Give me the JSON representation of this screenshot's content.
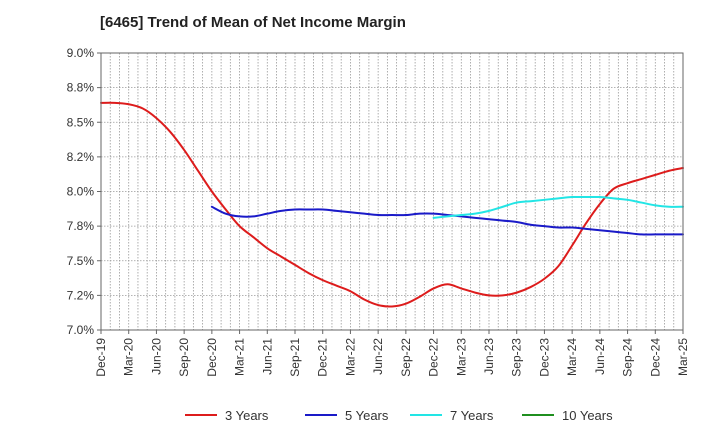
{
  "chart_data": {
    "type": "line",
    "title": "[6465]  Trend of Mean of Net Income Margin",
    "xlabel": "",
    "ylabel": "",
    "ylim": [
      7.0,
      9.0
    ],
    "y_ticks": [
      7.0,
      7.25,
      7.5,
      7.75,
      8.0,
      8.25,
      8.5,
      8.75,
      9.0
    ],
    "y_tick_labels": [
      "7.0%",
      "7.2%",
      "7.5%",
      "7.8%",
      "8.0%",
      "8.2%",
      "8.5%",
      "8.8%",
      "9.0%"
    ],
    "x_tick_labels": [
      "Dec-19",
      "Mar-20",
      "Jun-20",
      "Sep-20",
      "Dec-20",
      "Mar-21",
      "Jun-21",
      "Sep-21",
      "Dec-21",
      "Mar-22",
      "Jun-22",
      "Sep-22",
      "Dec-22",
      "Mar-23",
      "Jun-23",
      "Sep-23",
      "Dec-23",
      "Mar-24",
      "Jun-24",
      "Sep-24",
      "Dec-24",
      "Mar-25"
    ],
    "grid": true,
    "legend_position": "bottom",
    "series": [
      {
        "name": "3 Years",
        "color": "#dd1c1c",
        "values": [
          8.64,
          8.64,
          8.63,
          8.6,
          8.53,
          8.43,
          8.3,
          8.15,
          8.0,
          7.87,
          7.75,
          7.67,
          7.59,
          7.53,
          7.47,
          7.41,
          7.36,
          7.32,
          7.28,
          7.22,
          7.18,
          7.17,
          7.19,
          7.24,
          7.3,
          7.33,
          7.3,
          7.27,
          7.25,
          7.25,
          7.27,
          7.31,
          7.37,
          7.46,
          7.61,
          7.77,
          7.91,
          8.02,
          8.06,
          8.09,
          8.12,
          8.15,
          8.17
        ]
      },
      {
        "name": "5 Years",
        "color": "#1a1ac8",
        "values": [
          null,
          null,
          null,
          null,
          null,
          null,
          null,
          null,
          7.89,
          7.84,
          7.82,
          7.82,
          7.84,
          7.86,
          7.87,
          7.87,
          7.87,
          7.86,
          7.85,
          7.84,
          7.83,
          7.83,
          7.83,
          7.84,
          7.84,
          7.83,
          7.82,
          7.81,
          7.8,
          7.79,
          7.78,
          7.76,
          7.75,
          7.74,
          7.74,
          7.73,
          7.72,
          7.71,
          7.7,
          7.69,
          7.69,
          7.69,
          7.69
        ]
      },
      {
        "name": "7 Years",
        "color": "#22e5e5",
        "values": [
          null,
          null,
          null,
          null,
          null,
          null,
          null,
          null,
          null,
          null,
          null,
          null,
          null,
          null,
          null,
          null,
          null,
          null,
          null,
          null,
          null,
          null,
          null,
          null,
          7.81,
          7.82,
          7.83,
          7.84,
          7.86,
          7.89,
          7.92,
          7.93,
          7.94,
          7.95,
          7.96,
          7.96,
          7.96,
          7.95,
          7.94,
          7.92,
          7.9,
          7.89,
          7.89
        ]
      },
      {
        "name": "10 Years",
        "color": "#1f8f1f",
        "values": []
      }
    ]
  }
}
